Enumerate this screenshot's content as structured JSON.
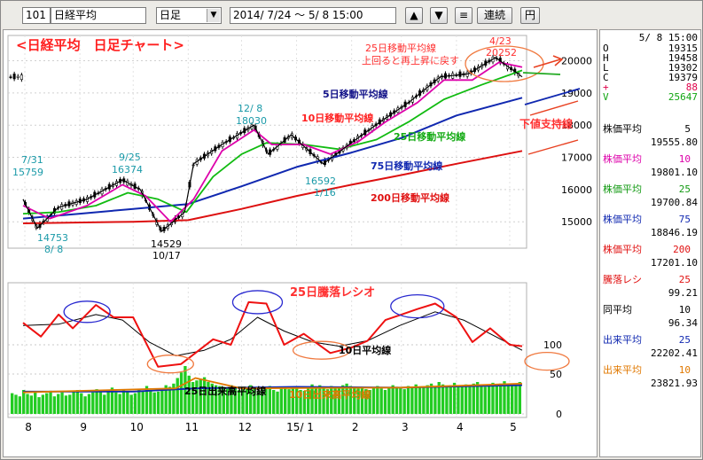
{
  "toolbar": {
    "code": "101",
    "name": "日経平均",
    "period": "日足",
    "range": "2014/ 7/24 〜  5/ 8 15:00",
    "up_label": "▲",
    "down_label": "▼",
    "menu_label": "≡",
    "continuous_label": "連続",
    "yen_label": "円"
  },
  "side": {
    "datetime": "5/ 8 15:00",
    "ohlcv": [
      {
        "k": "O",
        "v": "19315",
        "color": "#000000"
      },
      {
        "k": "H",
        "v": "19458",
        "color": "#000000"
      },
      {
        "k": "L",
        "v": "19302",
        "color": "#000000"
      },
      {
        "k": "C",
        "v": "19379",
        "color": "#000000"
      },
      {
        "k": "+",
        "v": "88",
        "color": "#e0004a"
      },
      {
        "k": "V",
        "v": "25647",
        "color": "#11a511"
      }
    ],
    "indicators": [
      {
        "label": "株価平均",
        "param": "5",
        "value": "19555.80",
        "color": "#000000"
      },
      {
        "label": "株価平均",
        "param": "10",
        "value": "19801.10",
        "color": "#dd00aa"
      },
      {
        "label": "株価平均",
        "param": "25",
        "value": "19700.84",
        "color": "#119911"
      },
      {
        "label": "株価平均",
        "param": "75",
        "value": "18846.19",
        "color": "#1028b0"
      },
      {
        "label": "株価平均",
        "param": "200",
        "value": "17201.10",
        "color": "#e01010"
      },
      {
        "label": "騰落レシ",
        "param": "25",
        "value": "99.21",
        "color": "#e01010"
      },
      {
        "label": "同平均",
        "param": "10",
        "value": "96.34",
        "color": "#000000"
      },
      {
        "label": "出来平均",
        "param": "25",
        "value": "22202.41",
        "color": "#1028b0"
      },
      {
        "label": "出来平均",
        "param": "10",
        "value": "23821.93",
        "color": "#e07800"
      }
    ]
  },
  "chart_data": {
    "type": "line",
    "title": "<日経平均　日足チャート>",
    "x_labels": [
      "8",
      "9",
      "10",
      "11",
      "12",
      "15/ 1",
      "2",
      "3",
      "4",
      "5"
    ],
    "price_axis": {
      "ticks": [
        15000,
        16000,
        17000,
        18000,
        19000,
        20000
      ],
      "ylim": [
        14400,
        20400
      ]
    },
    "ratio_axis": {
      "ticks": [
        100
      ]
    },
    "volume_axis": {
      "ticks": [
        0,
        50
      ]
    },
    "price_series": [
      {
        "name": "5日移動平均線",
        "color": "#000000",
        "points": [
          [
            "2014-07-31",
            15700
          ],
          [
            "2014-08-08",
            14800
          ],
          [
            "2014-08-20",
            15450
          ],
          [
            "2014-09-05",
            15700
          ],
          [
            "2014-09-25",
            16300
          ],
          [
            "2014-10-05",
            16000
          ],
          [
            "2014-10-17",
            14700
          ],
          [
            "2014-10-30",
            15300
          ],
          [
            "2014-11-04",
            16800
          ],
          [
            "2014-11-20",
            17400
          ],
          [
            "2014-12-08",
            18000
          ],
          [
            "2014-12-16",
            17100
          ],
          [
            "2014-12-29",
            17700
          ],
          [
            "2015-01-16",
            16800
          ],
          [
            "2015-02-02",
            17500
          ],
          [
            "2015-02-17",
            18100
          ],
          [
            "2015-03-05",
            18700
          ],
          [
            "2015-03-23",
            19500
          ],
          [
            "2015-04-08",
            19600
          ],
          [
            "2015-04-23",
            20100
          ],
          [
            "2015-05-08",
            19500
          ]
        ]
      },
      {
        "name": "10日移動平均線",
        "color": "#dd00aa",
        "points": [
          [
            "2014-07-31",
            15500
          ],
          [
            "2014-08-15",
            15100
          ],
          [
            "2014-09-05",
            15500
          ],
          [
            "2014-09-25",
            16150
          ],
          [
            "2014-10-08",
            15800
          ],
          [
            "2014-10-22",
            15000
          ],
          [
            "2014-11-04",
            15700
          ],
          [
            "2014-11-20",
            17200
          ],
          [
            "2014-12-08",
            17850
          ],
          [
            "2014-12-18",
            17400
          ],
          [
            "2015-01-05",
            17400
          ],
          [
            "2015-01-20",
            17100
          ],
          [
            "2015-02-05",
            17500
          ],
          [
            "2015-02-20",
            18100
          ],
          [
            "2015-03-10",
            18700
          ],
          [
            "2015-03-25",
            19400
          ],
          [
            "2015-04-10",
            19400
          ],
          [
            "2015-04-25",
            19950
          ],
          [
            "2015-05-08",
            19800
          ]
        ]
      },
      {
        "name": "25日移動平均線",
        "color": "#11bb11",
        "points": [
          [
            "2014-07-31",
            15250
          ],
          [
            "2014-08-20",
            15300
          ],
          [
            "2014-09-10",
            15500
          ],
          [
            "2014-09-28",
            15900
          ],
          [
            "2014-10-15",
            15700
          ],
          [
            "2014-10-31",
            15300
          ],
          [
            "2014-11-15",
            16400
          ],
          [
            "2014-12-01",
            17100
          ],
          [
            "2014-12-15",
            17450
          ],
          [
            "2015-01-05",
            17400
          ],
          [
            "2015-01-25",
            17250
          ],
          [
            "2015-02-15",
            17550
          ],
          [
            "2015-03-05",
            18100
          ],
          [
            "2015-03-25",
            18800
          ],
          [
            "2015-04-15",
            19250
          ],
          [
            "2015-05-08",
            19700
          ]
        ]
      },
      {
        "name": "75日移動平均線",
        "color": "#1028b0",
        "points": [
          [
            "2014-07-31",
            15100
          ],
          [
            "2014-09-01",
            15250
          ],
          [
            "2014-10-01",
            15400
          ],
          [
            "2014-11-01",
            15550
          ],
          [
            "2014-12-01",
            16100
          ],
          [
            "2015-01-01",
            16700
          ],
          [
            "2015-02-01",
            17150
          ],
          [
            "2015-03-01",
            17600
          ],
          [
            "2015-04-01",
            18300
          ],
          [
            "2015-05-08",
            18850
          ]
        ]
      },
      {
        "name": "200日移動平均線",
        "color": "#dd1010",
        "points": [
          [
            "2014-07-31",
            14950
          ],
          [
            "2014-10-01",
            15000
          ],
          [
            "2014-11-01",
            15050
          ],
          [
            "2014-12-01",
            15400
          ],
          [
            "2015-01-01",
            15800
          ],
          [
            "2015-02-01",
            16150
          ],
          [
            "2015-03-01",
            16450
          ],
          [
            "2015-04-01",
            16800
          ],
          [
            "2015-05-08",
            17200
          ]
        ]
      }
    ],
    "ratio_series": [
      {
        "name": "25日騰落レシオ",
        "color": "#ee1111",
        "points": [
          [
            "2014-07-31",
            116
          ],
          [
            "2014-08-10",
            106
          ],
          [
            "2014-08-20",
            122
          ],
          [
            "2014-08-28",
            112
          ],
          [
            "2014-09-10",
            129
          ],
          [
            "2014-09-20",
            120
          ],
          [
            "2014-10-01",
            120
          ],
          [
            "2014-10-15",
            84
          ],
          [
            "2014-10-28",
            86
          ],
          [
            "2014-11-05",
            94
          ],
          [
            "2014-11-15",
            104
          ],
          [
            "2014-11-25",
            100
          ],
          [
            "2014-12-05",
            131
          ],
          [
            "2014-12-15",
            130
          ],
          [
            "2014-12-25",
            100
          ],
          [
            "2015-01-05",
            108
          ],
          [
            "2015-01-20",
            94
          ],
          [
            "2015-02-01",
            98
          ],
          [
            "2015-02-10",
            103
          ],
          [
            "2015-02-20",
            118
          ],
          [
            "2015-03-01",
            122
          ],
          [
            "2015-03-10",
            126
          ],
          [
            "2015-03-20",
            130
          ],
          [
            "2015-04-01",
            120
          ],
          [
            "2015-04-10",
            102
          ],
          [
            "2015-04-20",
            112
          ],
          [
            "2015-05-01",
            100
          ],
          [
            "2015-05-08",
            99
          ]
        ]
      },
      {
        "name": "10日平均線",
        "color": "#000000",
        "points": [
          [
            "2014-07-31",
            114
          ],
          [
            "2014-08-20",
            115
          ],
          [
            "2014-09-10",
            122
          ],
          [
            "2014-09-25",
            118
          ],
          [
            "2014-10-10",
            102
          ],
          [
            "2014-10-25",
            92
          ],
          [
            "2014-11-10",
            96
          ],
          [
            "2014-11-25",
            104
          ],
          [
            "2014-12-10",
            120
          ],
          [
            "2014-12-25",
            110
          ],
          [
            "2015-01-10",
            102
          ],
          [
            "2015-01-25",
            99
          ],
          [
            "2015-02-10",
            103
          ],
          [
            "2015-02-28",
            114
          ],
          [
            "2015-03-20",
            124
          ],
          [
            "2015-04-05",
            118
          ],
          [
            "2015-04-20",
            108
          ],
          [
            "2015-05-08",
            96
          ]
        ]
      }
    ],
    "volume_series": [
      {
        "name": "出来高",
        "color": "#22cc22",
        "type": "bar"
      },
      {
        "name": "25日出来高平均線",
        "color": "#1028b0",
        "points": [
          [
            "2014-07-31",
            28
          ],
          [
            "2014-10-01",
            28
          ],
          [
            "2014-11-05",
            32
          ],
          [
            "2015-01-01",
            34
          ],
          [
            "2015-03-01",
            33
          ],
          [
            "2015-05-08",
            36
          ]
        ]
      },
      {
        "name": "10日出来高平均線",
        "color": "#e07800",
        "points": [
          [
            "2014-07-31",
            27
          ],
          [
            "2014-10-25",
            32
          ],
          [
            "2014-11-05",
            45
          ],
          [
            "2014-12-01",
            32
          ],
          [
            "2015-03-01",
            33
          ],
          [
            "2015-05-08",
            38
          ]
        ]
      }
    ],
    "volume_values": [
      26,
      24,
      22,
      30,
      25,
      23,
      28,
      21,
      24,
      26,
      29,
      22,
      25,
      27,
      23,
      24,
      28,
      30,
      26,
      22,
      25,
      27,
      31,
      28,
      24,
      29,
      33,
      27,
      25,
      30,
      28,
      24,
      26,
      31,
      29,
      35,
      30,
      27,
      28,
      32,
      36,
      34,
      38,
      45,
      52,
      60,
      48,
      40,
      42,
      44,
      46,
      40,
      38,
      36,
      35,
      34,
      32,
      36,
      33,
      30,
      31,
      34,
      36,
      32,
      29,
      31,
      33,
      35,
      30,
      28,
      32,
      34,
      31,
      33,
      35,
      30,
      29,
      33,
      37,
      34,
      36,
      32,
      31,
      35,
      33,
      34,
      36,
      38,
      35,
      33,
      32,
      34,
      31,
      30,
      33,
      35,
      32,
      30,
      33,
      36,
      34,
      32,
      31,
      35,
      33,
      37,
      34,
      33,
      36,
      38,
      35,
      40,
      37,
      34,
      36,
      39,
      35,
      34,
      37,
      36,
      38,
      40,
      35,
      34,
      37,
      39,
      36,
      38,
      41,
      37,
      35,
      38,
      40
    ],
    "annotations": {
      "high_917": "7/31",
      "high_917_val": "15759",
      "low_808": "14753",
      "low_808_date": "8/ 8",
      "high_925": "9/25",
      "high_925_val": "16374",
      "low_1017": "14529",
      "low_1017_date": "10/17",
      "high_1208": "12/ 8",
      "high_1208_val": "18030",
      "low_0116": "16592",
      "low_0116_date": "1/16",
      "high_0423": "4/23",
      "high_0423_val": "20252",
      "note1_line1": "25日移動平均線",
      "note1_line2": "上回ると再上昇に戻す",
      "note_support": "下値支持線",
      "label_ma5": "5日移動平均線",
      "label_ma10": "10日移動平均線",
      "label_ma25": "25日移動平均線",
      "label_ma75": "75日移動平均線",
      "label_ma200": "200日移動平均線",
      "label_ratio": "25日騰落レシオ",
      "label_ratio_avg": "10日平均線",
      "label_vol25": "25日出来高平均線",
      "label_vol10": "10日出来高平均線"
    }
  }
}
